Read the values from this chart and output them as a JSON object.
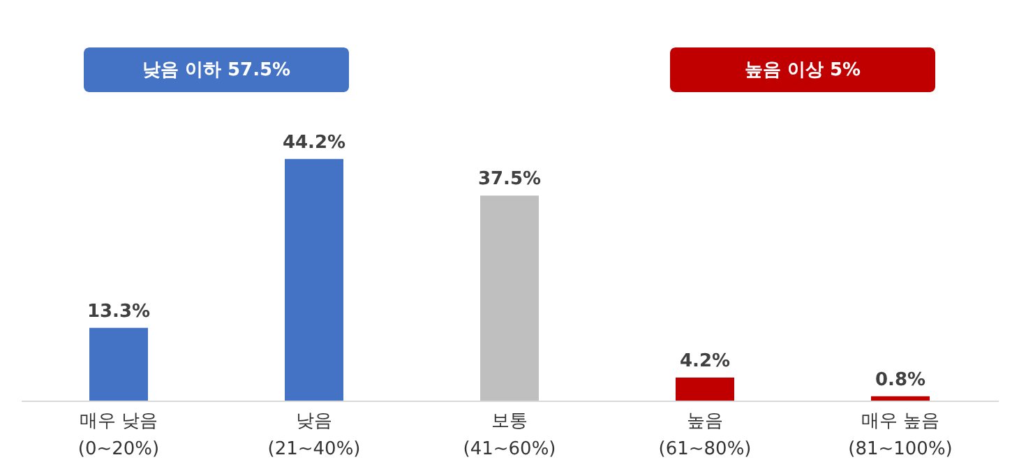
{
  "chart_data": {
    "type": "bar",
    "categories": [
      "매우 낮음\n(0~20%)",
      "낮음\n(21~40%)",
      "보통\n(41~60%)",
      "높음\n(61~80%)",
      "매우 높음\n(81~100%)"
    ],
    "values": [
      13.3,
      44.2,
      37.5,
      4.2,
      0.8
    ],
    "value_labels": [
      "13.3%",
      "44.2%",
      "37.5%",
      "4.2%",
      "0.8%"
    ],
    "colors": [
      "#4472c4",
      "#4472c4",
      "#bfbfbf",
      "#c00000",
      "#c00000"
    ],
    "annotations": [
      "낮음 이하 57.5%",
      "높음 이상 5%"
    ],
    "grid": false,
    "tick_labels": "x"
  }
}
